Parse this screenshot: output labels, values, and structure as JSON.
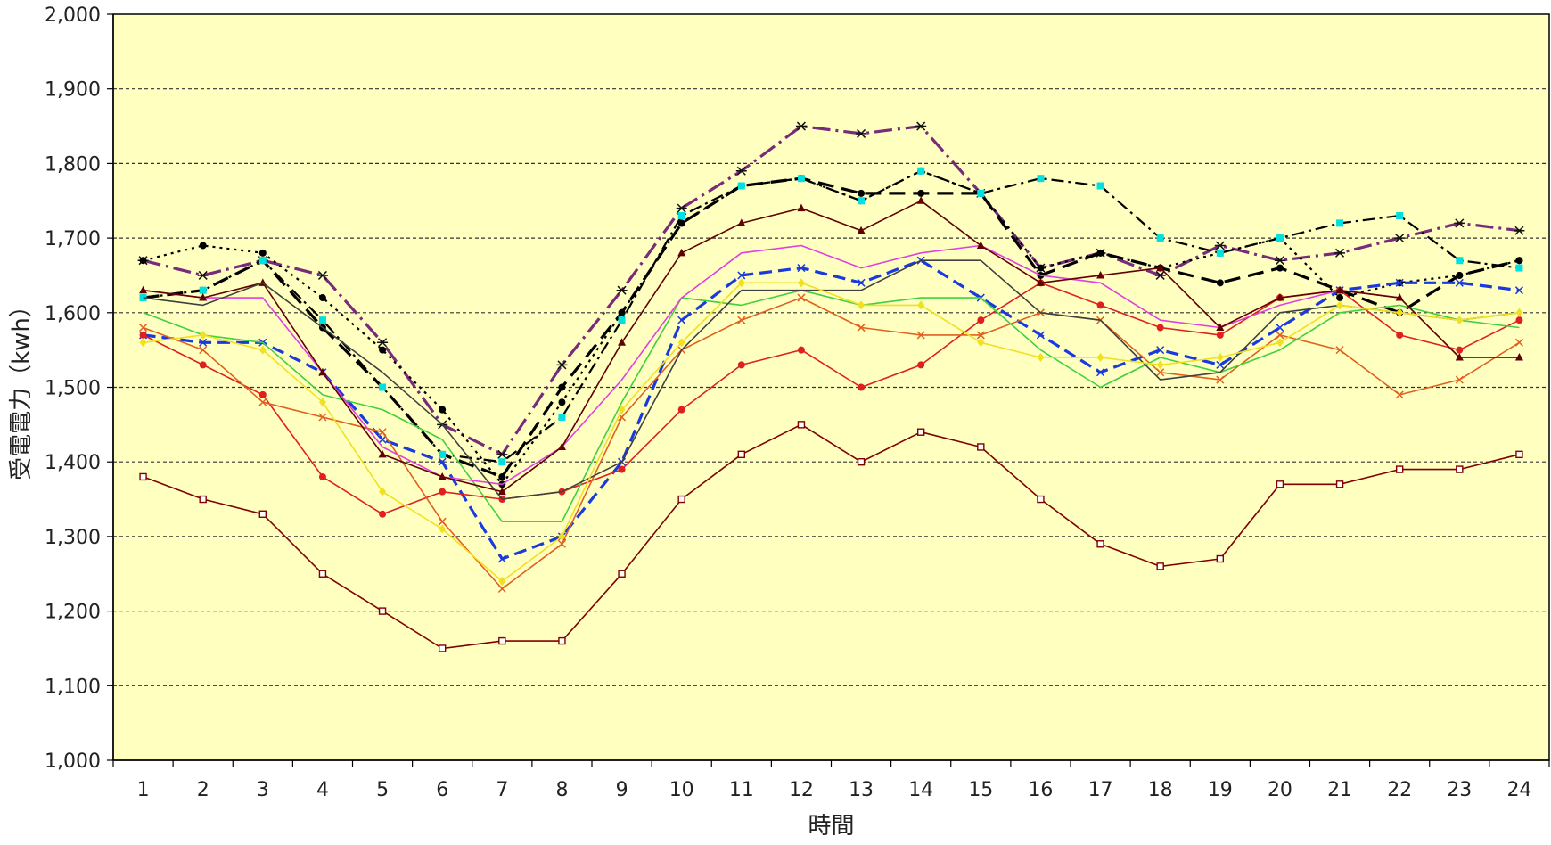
{
  "chart_data": {
    "type": "line",
    "title": "",
    "xlabel": "時間",
    "ylabel": "受電電力（kwh）",
    "x": [
      1,
      2,
      3,
      4,
      5,
      6,
      7,
      8,
      9,
      10,
      11,
      12,
      13,
      14,
      15,
      16,
      17,
      18,
      19,
      20,
      21,
      22,
      23,
      24
    ],
    "x_tick_labels": [
      "1",
      "2",
      "3",
      "4",
      "5",
      "6",
      "7",
      "8",
      "9",
      "10",
      "11",
      "12",
      "13",
      "14",
      "15",
      "16",
      "17",
      "18",
      "19",
      "20",
      "21",
      "22",
      "23",
      "24"
    ],
    "ylim": [
      1000,
      2000
    ],
    "y_ticks": [
      1000,
      1100,
      1200,
      1300,
      1400,
      1500,
      1600,
      1700,
      1800,
      1900,
      2000
    ],
    "y_tick_labels": [
      "1,000",
      "1,100",
      "1,200",
      "1,300",
      "1,400",
      "1,500",
      "1,600",
      "1,700",
      "1,800",
      "1,900",
      "2,000"
    ],
    "grid": "horizontal-dashed",
    "legend": "none",
    "colors": {
      "plot_background": "#ffffc0",
      "page_background": "#ffffff",
      "gridline": "#333333",
      "axis": "#000000"
    },
    "series": [
      {
        "color": "#7a2a7a",
        "dash": "longdashdot",
        "marker": "star",
        "width": 3.2,
        "values": [
          1670,
          1650,
          1670,
          1650,
          1560,
          1450,
          1410,
          1530,
          1630,
          1740,
          1790,
          1850,
          1840,
          1850,
          1760,
          1660,
          1680,
          1650,
          1690,
          1670,
          1680,
          1700,
          1720,
          1710
        ]
      },
      {
        "color": "#000000",
        "dash": "longdash",
        "marker": "circle",
        "width": 3.2,
        "values": [
          1620,
          1630,
          1670,
          1580,
          1500,
          1410,
          1380,
          1500,
          1600,
          1720,
          1770,
          1780,
          1760,
          1760,
          1760,
          1650,
          1680,
          1660,
          1640,
          1660,
          1630,
          1600,
          1650,
          1670
        ]
      },
      {
        "color": "#000000",
        "dash": "dot",
        "marker": "circle",
        "width": 2.2,
        "values": [
          1670,
          1690,
          1680,
          1620,
          1550,
          1470,
          1370,
          1480,
          1600,
          1720,
          1770,
          1780,
          1750,
          1790,
          1760,
          1660,
          1680,
          1660,
          1680,
          1700,
          1620,
          1640,
          1650,
          1670
        ]
      },
      {
        "color": "#000000",
        "dash": "dashdot",
        "marker": "square",
        "width": 2.2,
        "marker_color": "#00e0e0",
        "values": [
          1620,
          1630,
          1670,
          1590,
          1500,
          1410,
          1400,
          1460,
          1590,
          1730,
          1770,
          1780,
          1750,
          1790,
          1760,
          1780,
          1770,
          1700,
          1680,
          1700,
          1720,
          1730,
          1670,
          1660
        ]
      },
      {
        "color": "#1a3adc",
        "dash": "dash",
        "marker": "x",
        "width": 3.2,
        "values": [
          1570,
          1560,
          1560,
          1520,
          1430,
          1400,
          1270,
          1300,
          1400,
          1590,
          1650,
          1660,
          1640,
          1670,
          1620,
          1570,
          1520,
          1550,
          1530,
          1580,
          1630,
          1640,
          1640,
          1630
        ]
      },
      {
        "color": "#800000",
        "dash": "solid",
        "marker": "square-open",
        "width": 1.6,
        "values": [
          1380,
          1350,
          1330,
          1250,
          1200,
          1150,
          1160,
          1160,
          1250,
          1350,
          1410,
          1450,
          1400,
          1440,
          1420,
          1350,
          1290,
          1260,
          1270,
          1370,
          1370,
          1390,
          1390,
          1410
        ]
      },
      {
        "color": "#e02020",
        "dash": "solid",
        "marker": "circle",
        "width": 1.6,
        "values": [
          1570,
          1530,
          1490,
          1380,
          1330,
          1360,
          1350,
          1360,
          1390,
          1470,
          1530,
          1550,
          1500,
          1530,
          1590,
          1640,
          1610,
          1580,
          1570,
          1620,
          1630,
          1570,
          1550,
          1590
        ]
      },
      {
        "color": "#e06020",
        "dash": "solid",
        "marker": "x",
        "width": 1.6,
        "values": [
          1580,
          1550,
          1480,
          1460,
          1440,
          1320,
          1230,
          1290,
          1460,
          1550,
          1590,
          1620,
          1580,
          1570,
          1570,
          1600,
          1590,
          1520,
          1510,
          1570,
          1550,
          1490,
          1510,
          1560
        ]
      },
      {
        "color": "#40d040",
        "dash": "solid",
        "marker": "none",
        "width": 1.6,
        "values": [
          1600,
          1570,
          1560,
          1490,
          1470,
          1430,
          1320,
          1320,
          1480,
          1620,
          1610,
          1630,
          1610,
          1620,
          1620,
          1550,
          1500,
          1540,
          1520,
          1550,
          1600,
          1610,
          1590,
          1580
        ]
      },
      {
        "color": "#e040e0",
        "dash": "solid",
        "marker": "none",
        "width": 1.6,
        "values": [
          1630,
          1620,
          1620,
          1520,
          1420,
          1380,
          1370,
          1420,
          1510,
          1620,
          1680,
          1690,
          1660,
          1680,
          1690,
          1650,
          1640,
          1590,
          1580,
          1610,
          1630,
          1620,
          1540,
          1540
        ]
      },
      {
        "color": "#600000",
        "dash": "solid",
        "marker": "triangle",
        "width": 1.6,
        "values": [
          1630,
          1620,
          1640,
          1520,
          1410,
          1380,
          1360,
          1420,
          1560,
          1680,
          1720,
          1740,
          1710,
          1750,
          1690,
          1640,
          1650,
          1660,
          1580,
          1620,
          1630,
          1620,
          1540,
          1540
        ]
      },
      {
        "color": "#404040",
        "dash": "solid",
        "marker": "none",
        "width": 1.6,
        "values": [
          1620,
          1610,
          1640,
          1580,
          1520,
          1450,
          1350,
          1360,
          1400,
          1550,
          1630,
          1630,
          1630,
          1670,
          1670,
          1600,
          1590,
          1510,
          1520,
          1600,
          1610,
          1600,
          1590,
          1600
        ]
      },
      {
        "color": "#f0e020",
        "dash": "solid",
        "marker": "diamond",
        "width": 1.6,
        "values": [
          1560,
          1570,
          1550,
          1480,
          1360,
          1310,
          1240,
          1300,
          1470,
          1560,
          1640,
          1640,
          1610,
          1610,
          1560,
          1540,
          1540,
          1530,
          1540,
          1560,
          1610,
          1600,
          1590,
          1600
        ]
      }
    ]
  }
}
